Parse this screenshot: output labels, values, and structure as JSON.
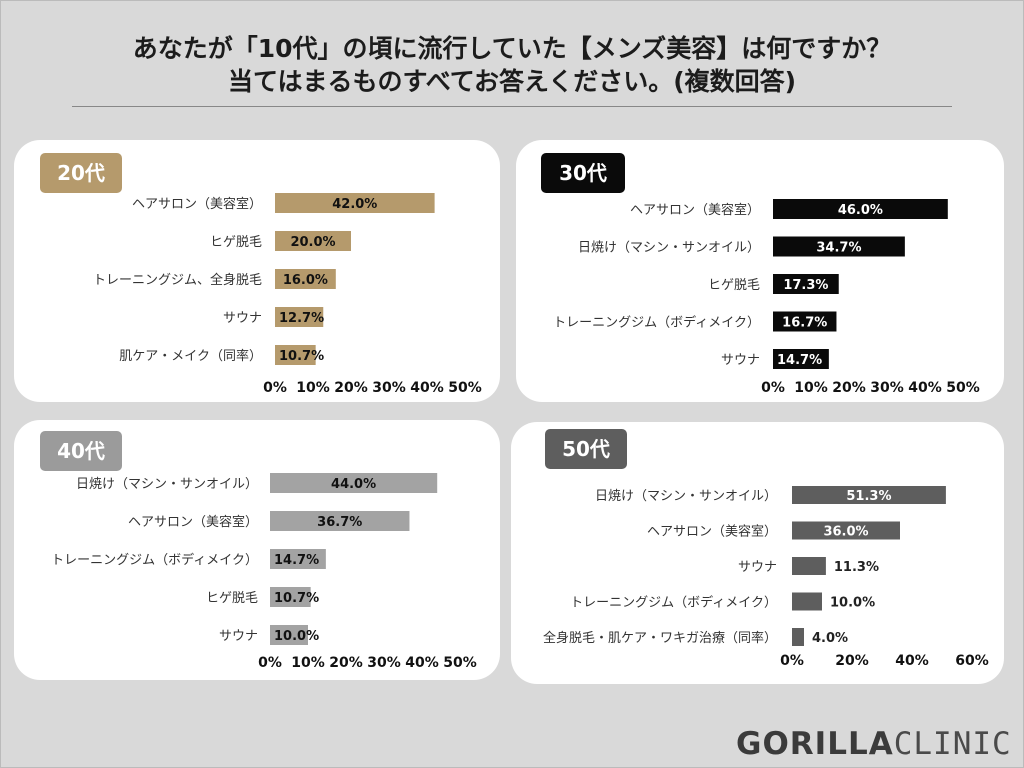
{
  "survey": {
    "title_line1": "あなたが「10代」の頃に流行していた【メンズ美容】は何ですか？",
    "title_line2": "当てはまるものすべてお答えください。(複数回答)"
  },
  "logo": {
    "bold": "GORILLA",
    "light": "CLINIC"
  },
  "chart_data": [
    {
      "type": "bar",
      "orientation": "horizontal",
      "title": "20代",
      "color": "#b59a6c",
      "badge_color": "#b59a6c",
      "categories": [
        "ヘアサロン（美容室）",
        "ヒゲ脱毛",
        "トレーニングジム、全身脱毛",
        "サウナ",
        "肌ケア・メイク（同率）"
      ],
      "values": [
        42.0,
        20.0,
        16.0,
        12.7,
        10.7
      ],
      "value_labels": [
        "42.0%",
        "20.0%",
        "16.0%",
        "12.7%",
        "10.7%"
      ],
      "label_style": "inside",
      "xlim": [
        0,
        50
      ],
      "ticks": [
        0,
        10,
        20,
        30,
        40,
        50
      ],
      "tick_labels": [
        "0%",
        "10%",
        "20%",
        "30%",
        "40%",
        "50%"
      ]
    },
    {
      "type": "bar",
      "orientation": "horizontal",
      "title": "30代",
      "color": "#0a0a0a",
      "badge_color": "#0a0a0a",
      "categories": [
        "ヘアサロン（美容室）",
        "日焼け（マシン・サンオイル）",
        "ヒゲ脱毛",
        "トレーニングジム（ボディメイク）",
        "サウナ"
      ],
      "values": [
        46.0,
        34.7,
        17.3,
        16.7,
        14.7
      ],
      "value_labels": [
        "46.0%",
        "34.7%",
        "17.3%",
        "16.7%",
        "14.7%"
      ],
      "label_style": "inside",
      "xlim": [
        0,
        50
      ],
      "ticks": [
        0,
        10,
        20,
        30,
        40,
        50
      ],
      "tick_labels": [
        "0%",
        "10%",
        "20%",
        "30%",
        "40%",
        "50%"
      ]
    },
    {
      "type": "bar",
      "orientation": "horizontal",
      "title": "40代",
      "color": "#a3a3a3",
      "badge_color": "#9b9b9b",
      "categories": [
        "日焼け（マシン・サンオイル）",
        "ヘアサロン（美容室）",
        "トレーニングジム（ボディメイク）",
        "ヒゲ脱毛",
        "サウナ"
      ],
      "values": [
        44.0,
        36.7,
        14.7,
        10.7,
        10.0
      ],
      "value_labels": [
        "44.0%",
        "36.7%",
        "14.7%",
        "10.7%",
        "10.0%"
      ],
      "label_style": "inside",
      "xlim": [
        0,
        50
      ],
      "ticks": [
        0,
        10,
        20,
        30,
        40,
        50
      ],
      "tick_labels": [
        "0%",
        "10%",
        "20%",
        "30%",
        "40%",
        "50%"
      ]
    },
    {
      "type": "bar",
      "orientation": "horizontal",
      "title": "50代",
      "color": "#5e5e5e",
      "badge_color": "#5e5e5e",
      "categories": [
        "日焼け（マシン・サンオイル）",
        "ヘアサロン（美容室）",
        "サウナ",
        "トレーニングジム（ボディメイク）",
        "全身脱毛・肌ケア・ワキガ治療（同率）"
      ],
      "values": [
        51.3,
        36.0,
        11.3,
        10.0,
        4.0
      ],
      "value_labels": [
        "51.3%",
        "36.0%",
        "11.3%",
        "10.0%",
        "4.0%"
      ],
      "label_style": "mixed",
      "xlim": [
        0,
        60
      ],
      "ticks": [
        0,
        20,
        40,
        60
      ],
      "tick_labels": [
        "0%",
        "20%",
        "40%",
        "60%"
      ]
    }
  ]
}
